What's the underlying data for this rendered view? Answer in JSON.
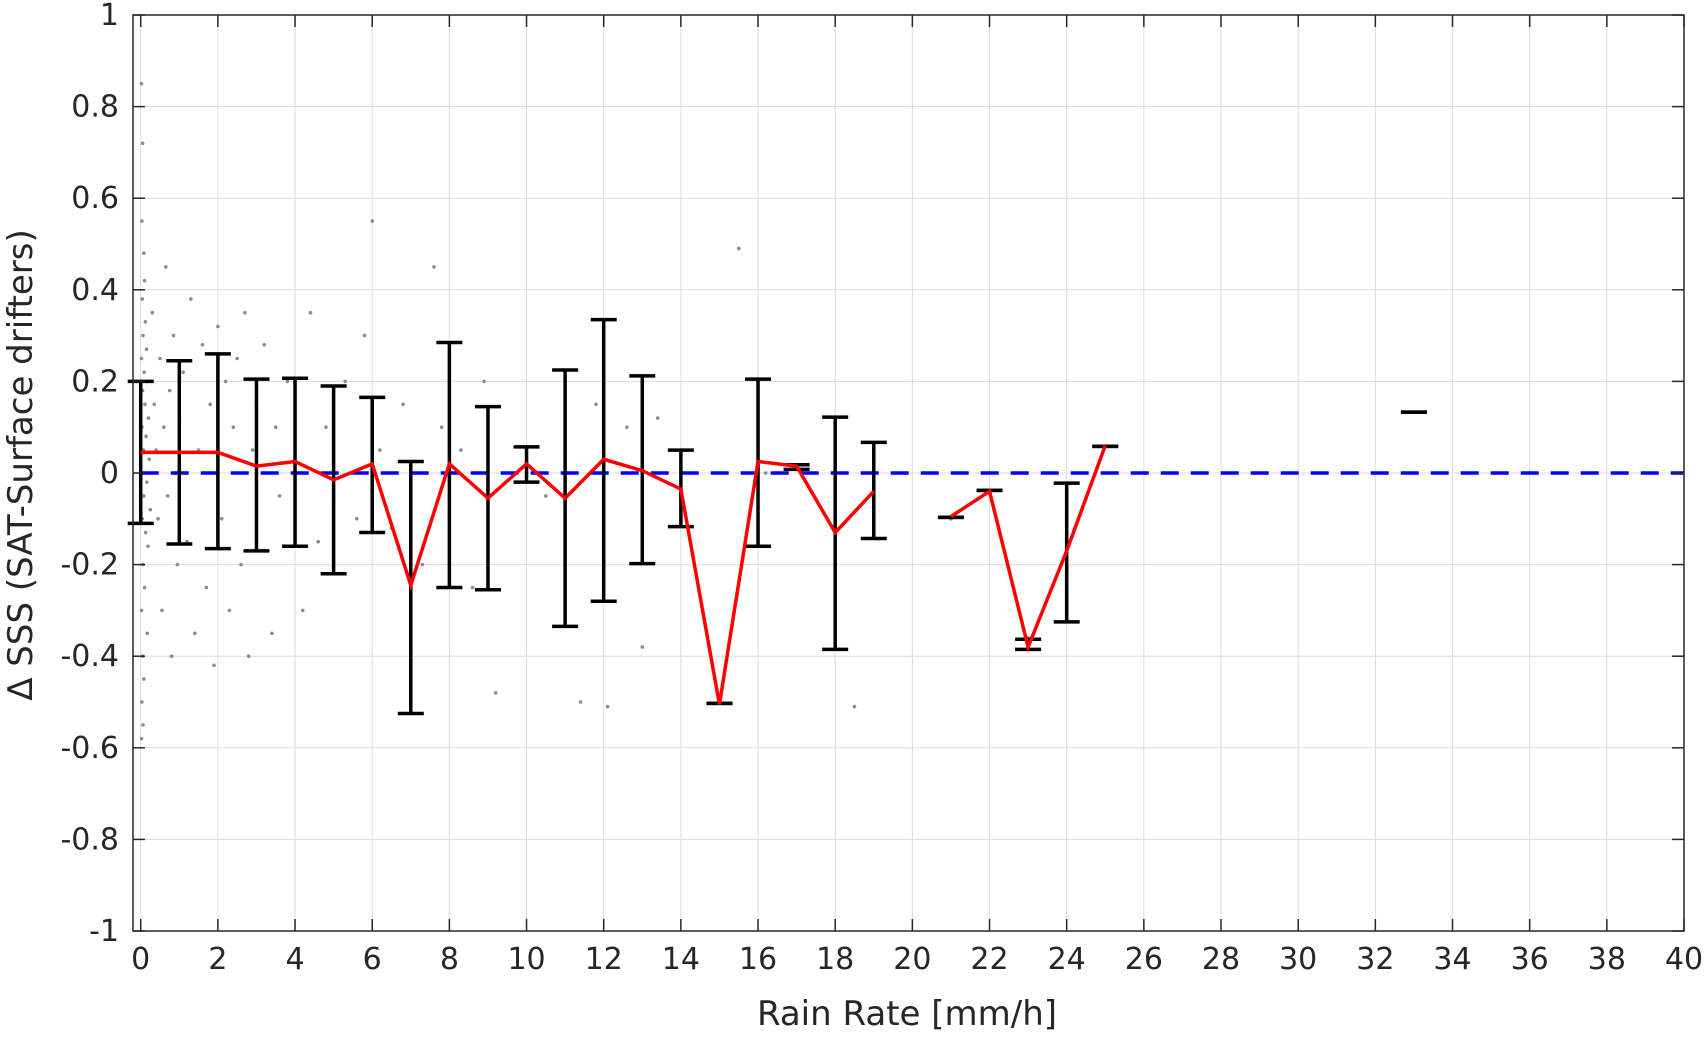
{
  "chart_data": {
    "type": "scatter",
    "xlabel": "Rain Rate [mm/h]",
    "ylabel": "Δ SSS (SAT-Surface drifters)",
    "xlim": [
      -0.2,
      40
    ],
    "ylim": [
      -1,
      1
    ],
    "grid": true,
    "x_ticks": [
      "0",
      "2",
      "4",
      "6",
      "8",
      "10",
      "12",
      "14",
      "16",
      "18",
      "20",
      "22",
      "24",
      "26",
      "28",
      "30",
      "32",
      "34",
      "36",
      "38",
      "40"
    ],
    "y_ticks": [
      "1",
      "0.8",
      "0.6",
      "0.4",
      "0.2",
      "0",
      "-0.2",
      "-0.4",
      "-0.6",
      "-0.8",
      "-1"
    ],
    "colors": {
      "scatter": "#8c8c8c",
      "mean_line": "#ff0000",
      "error_bars": "#000000",
      "zero_line": "#0000ff",
      "grid": "#dcdcdc"
    },
    "series": [
      {
        "kind": "scatter",
        "points": [
          [
            0.02,
            0.85
          ],
          [
            0.05,
            0.72
          ],
          [
            0.03,
            0.55
          ],
          [
            0.08,
            0.48
          ],
          [
            0.1,
            0.42
          ],
          [
            0.04,
            0.38
          ],
          [
            0.12,
            0.33
          ],
          [
            0.06,
            0.3
          ],
          [
            0.15,
            0.27
          ],
          [
            0.02,
            0.25
          ],
          [
            0.09,
            0.22
          ],
          [
            0.18,
            0.2
          ],
          [
            0.05,
            0.18
          ],
          [
            0.11,
            0.15
          ],
          [
            0.2,
            0.12
          ],
          [
            0.03,
            0.1
          ],
          [
            0.14,
            0.08
          ],
          [
            0.07,
            0.05
          ],
          [
            0.22,
            0.03
          ],
          [
            0.01,
            0.0
          ],
          [
            0.16,
            -0.02
          ],
          [
            0.08,
            -0.05
          ],
          [
            0.25,
            -0.08
          ],
          [
            0.04,
            -0.1
          ],
          [
            0.13,
            -0.13
          ],
          [
            0.19,
            -0.16
          ],
          [
            0.06,
            -0.2
          ],
          [
            0.1,
            -0.25
          ],
          [
            0.02,
            -0.3
          ],
          [
            0.17,
            -0.35
          ],
          [
            0.05,
            -0.4
          ],
          [
            0.08,
            -0.45
          ],
          [
            0.03,
            -0.5
          ],
          [
            0.06,
            -0.55
          ],
          [
            0.02,
            -0.58
          ],
          [
            0.3,
            0.35
          ],
          [
            0.35,
            0.15
          ],
          [
            0.4,
            0.05
          ],
          [
            0.45,
            -0.1
          ],
          [
            0.5,
            0.25
          ],
          [
            0.55,
            -0.3
          ],
          [
            0.6,
            0.1
          ],
          [
            0.65,
            0.45
          ],
          [
            0.7,
            -0.05
          ],
          [
            0.75,
            0.18
          ],
          [
            0.8,
            -0.4
          ],
          [
            0.85,
            0.3
          ],
          [
            0.9,
            0.0
          ],
          [
            0.95,
            -0.2
          ],
          [
            1.0,
            0.12
          ],
          [
            1.1,
            0.22
          ],
          [
            1.2,
            -0.15
          ],
          [
            1.3,
            0.38
          ],
          [
            1.4,
            -0.35
          ],
          [
            1.5,
            0.05
          ],
          [
            1.6,
            0.28
          ],
          [
            1.7,
            -0.25
          ],
          [
            1.8,
            0.15
          ],
          [
            1.9,
            -0.42
          ],
          [
            2.0,
            0.32
          ],
          [
            2.1,
            -0.1
          ],
          [
            2.2,
            0.2
          ],
          [
            2.3,
            -0.3
          ],
          [
            2.4,
            0.1
          ],
          [
            2.5,
            0.25
          ],
          [
            2.6,
            -0.2
          ],
          [
            2.7,
            0.35
          ],
          [
            2.8,
            -0.4
          ],
          [
            2.9,
            0.05
          ],
          [
            3.0,
            0.15
          ],
          [
            3.2,
            0.28
          ],
          [
            3.4,
            -0.35
          ],
          [
            3.5,
            0.1
          ],
          [
            3.6,
            -0.05
          ],
          [
            3.8,
            0.2
          ],
          [
            4.0,
            0.05
          ],
          [
            4.2,
            -0.3
          ],
          [
            4.4,
            0.35
          ],
          [
            4.6,
            -0.15
          ],
          [
            4.8,
            0.1
          ],
          [
            5.0,
            -0.05
          ],
          [
            5.3,
            0.2
          ],
          [
            5.6,
            -0.1
          ],
          [
            5.8,
            0.3
          ],
          [
            6.0,
            0.55
          ],
          [
            6.2,
            0.05
          ],
          [
            6.5,
            -0.12
          ],
          [
            6.8,
            0.15
          ],
          [
            7.0,
            -0.4
          ],
          [
            7.3,
            -0.2
          ],
          [
            7.6,
            0.45
          ],
          [
            7.8,
            0.1
          ],
          [
            8.0,
            -0.1
          ],
          [
            8.3,
            0.05
          ],
          [
            8.6,
            -0.25
          ],
          [
            8.9,
            0.2
          ],
          [
            9.2,
            -0.48
          ],
          [
            9.6,
            0.0
          ],
          [
            10.0,
            0.02
          ],
          [
            10.5,
            -0.05
          ],
          [
            11.0,
            0.05
          ],
          [
            11.4,
            -0.5
          ],
          [
            11.8,
            0.15
          ],
          [
            12.1,
            -0.51
          ],
          [
            12.6,
            0.1
          ],
          [
            13.0,
            -0.38
          ],
          [
            13.4,
            0.12
          ],
          [
            14.0,
            -0.05
          ],
          [
            15.5,
            0.49
          ],
          [
            16.2,
            0.0
          ],
          [
            17.0,
            0.01
          ],
          [
            18.0,
            -0.2
          ],
          [
            18.5,
            -0.51
          ],
          [
            21.0,
            -0.1
          ],
          [
            22.0,
            -0.04
          ],
          [
            23.0,
            -0.36
          ],
          [
            24.0,
            -0.17
          ]
        ]
      },
      {
        "kind": "line",
        "segments": [
          [
            [
              0,
              0.045
            ],
            [
              1,
              0.045
            ],
            [
              2,
              0.045
            ],
            [
              3,
              0.015
            ],
            [
              4,
              0.025
            ],
            [
              5,
              -0.015
            ],
            [
              6,
              0.02
            ],
            [
              7,
              -0.245
            ],
            [
              8,
              0.02
            ],
            [
              9,
              -0.055
            ],
            [
              10,
              0.02
            ],
            [
              11,
              -0.055
            ],
            [
              12,
              0.03
            ],
            [
              13,
              0.005
            ],
            [
              14,
              -0.035
            ],
            [
              15,
              -0.505
            ],
            [
              16,
              0.025
            ],
            [
              17,
              0.015
            ],
            [
              18,
              -0.13
            ],
            [
              19,
              -0.04
            ]
          ],
          [
            [
              21,
              -0.095
            ],
            [
              22,
              -0.04
            ],
            [
              23,
              -0.38
            ],
            [
              24,
              -0.17
            ],
            [
              25,
              0.06
            ]
          ]
        ]
      },
      {
        "kind": "errorbar",
        "bars": [
          [
            0,
            -0.11,
            0.2
          ],
          [
            1,
            -0.155,
            0.245
          ],
          [
            2,
            -0.165,
            0.26
          ],
          [
            3,
            -0.17,
            0.205
          ],
          [
            4,
            -0.16,
            0.207
          ],
          [
            5,
            -0.22,
            0.19
          ],
          [
            6,
            -0.13,
            0.165
          ],
          [
            7,
            -0.525,
            0.025
          ],
          [
            8,
            -0.25,
            0.285
          ],
          [
            9,
            -0.255,
            0.145
          ],
          [
            10,
            -0.02,
            0.057
          ],
          [
            11,
            -0.335,
            0.225
          ],
          [
            12,
            -0.28,
            0.335
          ],
          [
            13,
            -0.198,
            0.212
          ],
          [
            14,
            -0.117,
            0.05
          ],
          [
            15,
            -0.503,
            -0.503
          ],
          [
            16,
            -0.16,
            0.205
          ],
          [
            17,
            0.008,
            0.018
          ],
          [
            18,
            -0.385,
            0.122
          ],
          [
            19,
            -0.143,
            0.067
          ],
          [
            21,
            -0.097,
            -0.097
          ],
          [
            22,
            -0.038,
            -0.038
          ],
          [
            23,
            -0.385,
            -0.363
          ],
          [
            24,
            -0.325,
            -0.022
          ],
          [
            25,
            0.058,
            0.058
          ],
          [
            33,
            0.133,
            0.133
          ]
        ]
      },
      {
        "kind": "reference",
        "y": 0
      }
    ]
  }
}
